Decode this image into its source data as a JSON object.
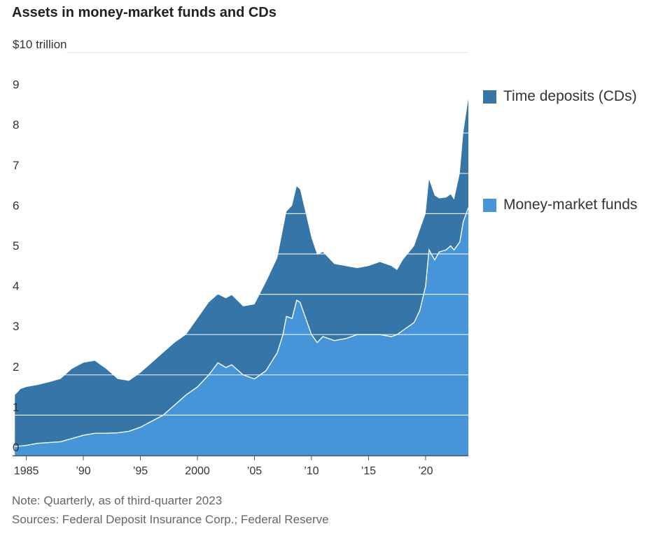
{
  "title": "Assets in money-market funds and CDs",
  "notes": {
    "note": "Note: Quarterly, as of third-quarter 2023",
    "sources": "Sources: Federal Deposit Insurance Corp.; Federal Reserve"
  },
  "colors": {
    "cds": "#3575a8",
    "mmf": "#4595d8",
    "divider": "#ffffff",
    "grid": "#e0e0e0",
    "axis": "#555555"
  },
  "legend": [
    {
      "label": "Time deposits (CDs)",
      "color": "#3575a8"
    },
    {
      "label": "Money-market funds",
      "color": "#4595d8"
    }
  ],
  "chart_data": {
    "type": "area",
    "stacked": true,
    "title": "Assets in money-market funds and CDs",
    "unit_label": "$10 trillion",
    "ylim": [
      0,
      10
    ],
    "xlim": [
      1983.8,
      2023.75
    ],
    "grid": true,
    "legend_position": "right",
    "y_ticks": [
      {
        "value": 0,
        "label": "0"
      },
      {
        "value": 1,
        "label": "1"
      },
      {
        "value": 2,
        "label": "2"
      },
      {
        "value": 3,
        "label": "3"
      },
      {
        "value": 4,
        "label": "4"
      },
      {
        "value": 5,
        "label": "5"
      },
      {
        "value": 6,
        "label": "6"
      },
      {
        "value": 7,
        "label": "7"
      },
      {
        "value": 8,
        "label": "8"
      },
      {
        "value": 9,
        "label": "9"
      }
    ],
    "x_ticks": [
      {
        "value": 1985,
        "label": "1985"
      },
      {
        "value": 1990,
        "label": "’90"
      },
      {
        "value": 1995,
        "label": "’95"
      },
      {
        "value": 2000,
        "label": "2000"
      },
      {
        "value": 2005,
        "label": "’05"
      },
      {
        "value": 2010,
        "label": "’10"
      },
      {
        "value": 2015,
        "label": "’15"
      },
      {
        "value": 2020,
        "label": "’20"
      }
    ],
    "series": [
      {
        "name": "Money-market funds",
        "points": [
          [
            1984.0,
            0.22
          ],
          [
            1985.0,
            0.25
          ],
          [
            1986.0,
            0.3
          ],
          [
            1987.0,
            0.32
          ],
          [
            1988.0,
            0.34
          ],
          [
            1989.0,
            0.42
          ],
          [
            1990.0,
            0.5
          ],
          [
            1991.0,
            0.55
          ],
          [
            1992.0,
            0.55
          ],
          [
            1993.0,
            0.56
          ],
          [
            1994.0,
            0.6
          ],
          [
            1995.0,
            0.7
          ],
          [
            1996.0,
            0.85
          ],
          [
            1997.0,
            1.0
          ],
          [
            1998.0,
            1.25
          ],
          [
            1999.0,
            1.5
          ],
          [
            2000.0,
            1.7
          ],
          [
            2001.0,
            2.0
          ],
          [
            2001.8,
            2.3
          ],
          [
            2002.5,
            2.18
          ],
          [
            2003.0,
            2.25
          ],
          [
            2004.0,
            2.0
          ],
          [
            2005.0,
            1.9
          ],
          [
            2006.0,
            2.1
          ],
          [
            2007.0,
            2.55
          ],
          [
            2007.5,
            3.0
          ],
          [
            2007.8,
            3.45
          ],
          [
            2008.3,
            3.4
          ],
          [
            2008.7,
            3.85
          ],
          [
            2009.0,
            3.8
          ],
          [
            2009.5,
            3.4
          ],
          [
            2010.0,
            3.0
          ],
          [
            2010.5,
            2.8
          ],
          [
            2011.0,
            2.95
          ],
          [
            2012.0,
            2.85
          ],
          [
            2013.0,
            2.9
          ],
          [
            2014.0,
            3.0
          ],
          [
            2015.0,
            3.0
          ],
          [
            2016.0,
            3.0
          ],
          [
            2017.0,
            2.95
          ],
          [
            2017.5,
            3.0
          ],
          [
            2018.0,
            3.1
          ],
          [
            2019.0,
            3.3
          ],
          [
            2019.5,
            3.6
          ],
          [
            2020.0,
            4.2
          ],
          [
            2020.3,
            5.1
          ],
          [
            2020.8,
            4.85
          ],
          [
            2021.2,
            5.05
          ],
          [
            2021.8,
            5.1
          ],
          [
            2022.2,
            5.2
          ],
          [
            2022.5,
            5.1
          ],
          [
            2023.0,
            5.3
          ],
          [
            2023.3,
            5.8
          ],
          [
            2023.75,
            6.15
          ]
        ]
      },
      {
        "name": "Time deposits (CDs)",
        "points": [
          [
            1984.0,
            1.5
          ],
          [
            1984.5,
            1.65
          ],
          [
            1985.0,
            1.7
          ],
          [
            1986.0,
            1.75
          ],
          [
            1987.0,
            1.82
          ],
          [
            1988.0,
            1.9
          ],
          [
            1989.0,
            2.15
          ],
          [
            1990.0,
            2.3
          ],
          [
            1991.0,
            2.35
          ],
          [
            1992.0,
            2.15
          ],
          [
            1993.0,
            1.9
          ],
          [
            1994.0,
            1.85
          ],
          [
            1995.0,
            2.05
          ],
          [
            1996.0,
            2.3
          ],
          [
            1997.0,
            2.55
          ],
          [
            1998.0,
            2.8
          ],
          [
            1999.0,
            3.0
          ],
          [
            2000.0,
            3.4
          ],
          [
            2001.0,
            3.8
          ],
          [
            2001.8,
            4.0
          ],
          [
            2002.5,
            3.9
          ],
          [
            2003.0,
            3.98
          ],
          [
            2004.0,
            3.7
          ],
          [
            2005.0,
            3.75
          ],
          [
            2006.0,
            4.3
          ],
          [
            2007.0,
            4.9
          ],
          [
            2007.8,
            6.05
          ],
          [
            2008.3,
            6.2
          ],
          [
            2008.7,
            6.68
          ],
          [
            2009.0,
            6.6
          ],
          [
            2009.5,
            6.0
          ],
          [
            2010.0,
            5.4
          ],
          [
            2010.5,
            4.98
          ],
          [
            2011.0,
            5.05
          ],
          [
            2012.0,
            4.75
          ],
          [
            2013.0,
            4.7
          ],
          [
            2014.0,
            4.65
          ],
          [
            2015.0,
            4.7
          ],
          [
            2016.0,
            4.8
          ],
          [
            2017.0,
            4.7
          ],
          [
            2017.5,
            4.6
          ],
          [
            2018.0,
            4.85
          ],
          [
            2019.0,
            5.2
          ],
          [
            2019.5,
            5.6
          ],
          [
            2020.0,
            6.0
          ],
          [
            2020.3,
            6.85
          ],
          [
            2020.8,
            6.45
          ],
          [
            2021.2,
            6.38
          ],
          [
            2021.8,
            6.4
          ],
          [
            2022.2,
            6.48
          ],
          [
            2022.5,
            6.35
          ],
          [
            2023.0,
            7.0
          ],
          [
            2023.3,
            8.0
          ],
          [
            2023.75,
            8.85
          ]
        ]
      }
    ]
  }
}
